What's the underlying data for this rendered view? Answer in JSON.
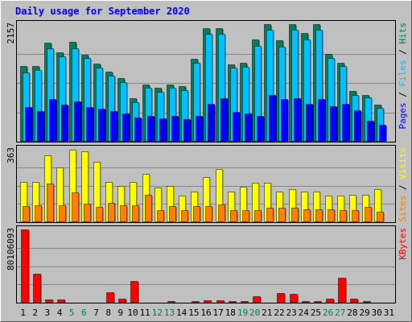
{
  "title": "Daily usage for September 2020",
  "colors": {
    "background": "#c0c0c0",
    "plot_bg": "#c0c0c0",
    "grid": "#888888",
    "hits": "#00805c",
    "files": "#00c0ff",
    "pages": "#0000ff",
    "visits": "#ffff00",
    "sites": "#ff8000",
    "kbytes": "#ff0000",
    "title": "#0000ff",
    "weekend_day": "#00805c",
    "weekday": "#000000"
  },
  "chart_data": [
    {
      "type": "bar",
      "panel": "hits-files-pages",
      "ymax_label": "2157",
      "ylim": [
        0,
        2157
      ],
      "legend": [
        {
          "name": "Hits",
          "color": "#00805c"
        },
        {
          "name": "Files",
          "color": "#00c0ff"
        },
        {
          "name": "Pages",
          "color": "#0000ff"
        }
      ],
      "categories": [
        "1",
        "2",
        "3",
        "4",
        "5",
        "6",
        "7",
        "8",
        "9",
        "10",
        "11",
        "12",
        "13",
        "14",
        "15",
        "16",
        "17",
        "18",
        "19",
        "20",
        "21",
        "22",
        "23",
        "24",
        "25",
        "26",
        "27",
        "28",
        "29",
        "30",
        "31"
      ],
      "series": [
        {
          "name": "Hits",
          "values": [
            1395,
            1395,
            1823,
            1645,
            1830,
            1595,
            1426,
            1285,
            1170,
            800,
            1050,
            985,
            1050,
            1020,
            1520,
            2080,
            2080,
            1425,
            1455,
            1880,
            2150,
            1860,
            2150,
            1995,
            2157,
            1610,
            1455,
            930,
            855,
            680,
            0
          ]
        },
        {
          "name": "Files",
          "values": [
            1270,
            1320,
            1710,
            1560,
            1720,
            1530,
            1355,
            1210,
            1090,
            730,
            990,
            920,
            995,
            950,
            1445,
            1980,
            1980,
            1360,
            1380,
            1760,
            2050,
            1740,
            2050,
            1880,
            2050,
            1540,
            1385,
            860,
            810,
            620,
            0
          ]
        },
        {
          "name": "Pages",
          "values": [
            630,
            560,
            780,
            680,
            740,
            640,
            600,
            560,
            520,
            440,
            470,
            430,
            470,
            420,
            470,
            700,
            800,
            540,
            520,
            470,
            860,
            780,
            800,
            700,
            780,
            650,
            690,
            570,
            380,
            310,
            0
          ]
        }
      ]
    },
    {
      "type": "bar",
      "panel": "visits-sites",
      "ymax_label": "363",
      "ylim": [
        0,
        363
      ],
      "legend": [
        {
          "name": "Visits",
          "color": "#ffff00"
        },
        {
          "name": "Sites",
          "color": "#ff8000"
        }
      ],
      "categories": [
        "1",
        "2",
        "3",
        "4",
        "5",
        "6",
        "7",
        "8",
        "9",
        "10",
        "11",
        "12",
        "13",
        "14",
        "15",
        "16",
        "17",
        "18",
        "19",
        "20",
        "21",
        "22",
        "23",
        "24",
        "25",
        "26",
        "27",
        "28",
        "29",
        "30",
        "31"
      ],
      "series": [
        {
          "name": "Visits",
          "values": [
            200,
            200,
            330,
            270,
            360,
            350,
            300,
            200,
            180,
            200,
            240,
            170,
            180,
            130,
            150,
            225,
            262,
            150,
            175,
            195,
            195,
            152,
            162,
            150,
            152,
            132,
            132,
            135,
            135,
            165,
            0
          ]
        },
        {
          "name": "Sites",
          "values": [
            78,
            85,
            190,
            85,
            148,
            90,
            75,
            95,
            85,
            85,
            135,
            60,
            80,
            60,
            80,
            80,
            88,
            60,
            60,
            58,
            70,
            70,
            70,
            65,
            65,
            65,
            60,
            60,
            75,
            50,
            0
          ]
        }
      ]
    },
    {
      "type": "bar",
      "panel": "kbytes",
      "ymax_label": "80106093",
      "ylim": [
        0,
        80106093
      ],
      "legend": [
        {
          "name": "KBytes",
          "color": "#ff0000"
        }
      ],
      "categories": [
        "1",
        "2",
        "3",
        "4",
        "5",
        "6",
        "7",
        "8",
        "9",
        "10",
        "11",
        "12",
        "13",
        "14",
        "15",
        "16",
        "17",
        "18",
        "19",
        "20",
        "21",
        "22",
        "23",
        "24",
        "25",
        "26",
        "27",
        "28",
        "29",
        "30",
        "31"
      ],
      "series": [
        {
          "name": "KBytes",
          "values": [
            80106093,
            31750000,
            3150000,
            3150000,
            1160000,
            1160000,
            1160000,
            11350000,
            4100000,
            23650000,
            1160000,
            1160000,
            1830000,
            1160000,
            1830000,
            2400000,
            2400000,
            2100000,
            1830000,
            6800000,
            1160000,
            10200000,
            9500000,
            1830000,
            1830000,
            4100000,
            27000000,
            4770000,
            2100000,
            1160000,
            0
          ]
        }
      ]
    }
  ]
}
